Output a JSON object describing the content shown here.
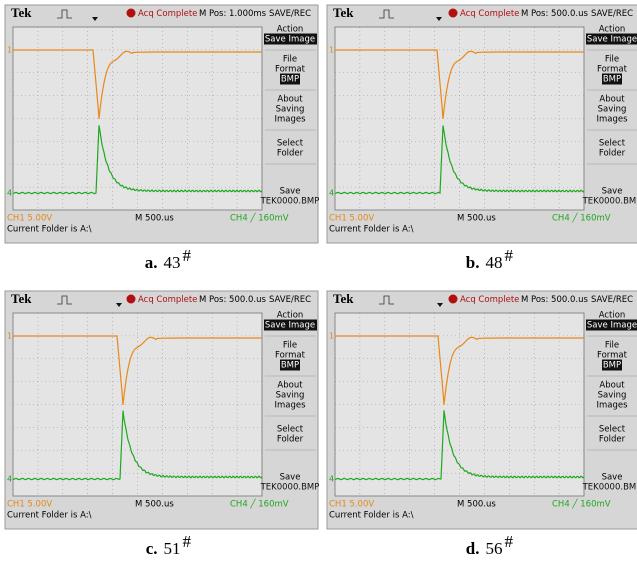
{
  "panels": [
    {
      "screen": {
        "brand": "Tek",
        "status": "Acq Complete",
        "mpos": "M Pos: 1.000ms",
        "mode": "SAVE/REC",
        "ch1_marker": "1",
        "ch4_marker": "4",
        "menu": [
          {
            "label": [
              "Action"
            ],
            "value": "Save Image"
          },
          {
            "label": [
              "File",
              "Format"
            ],
            "value": "BMP"
          },
          {
            "label": [
              "About",
              "Saving",
              "Images"
            ]
          },
          {
            "label": [
              "Select",
              "Folder"
            ]
          },
          {
            "label": [
              "Save"
            ],
            "value": "TEK0000.BMP"
          }
        ],
        "ch1": "CH1  5.00V",
        "timebase": "M 500.us",
        "ch4": "CH4 ╱ 160mV",
        "folder": "Current Folder is A:\\"
      },
      "caption": {
        "letter": "a.",
        "number": "43",
        "mark": "#"
      }
    },
    {
      "screen": {
        "brand": "Tek",
        "status": "Acq Complete",
        "mpos": "M Pos: 500.0.us",
        "mode": "SAVE/REC",
        "ch1_marker": "1",
        "ch4_marker": "4",
        "menu": [
          {
            "label": [
              "Action"
            ],
            "value": "Save Image"
          },
          {
            "label": [
              "File",
              "Format"
            ],
            "value": "BMP"
          },
          {
            "label": [
              "About",
              "Saving",
              "Images"
            ]
          },
          {
            "label": [
              "Select",
              "Folder"
            ]
          },
          {
            "label": [
              "Save"
            ],
            "value": "TEK0000.BMP"
          }
        ],
        "ch1": "CH1  5.00V",
        "timebase": "M 500.us",
        "ch4": "CH4 ╱ 160mV",
        "folder": "Current Folder is A:\\"
      },
      "caption": {
        "letter": "b.",
        "number": "48",
        "mark": "#"
      }
    },
    {
      "screen": {
        "brand": "Tek",
        "status": "Acq Complete",
        "mpos": "M Pos: 500.0.us",
        "mode": "SAVE/REC",
        "ch1_marker": "1",
        "ch4_marker": "4",
        "menu": [
          {
            "label": [
              "Action"
            ],
            "value": "Save Image"
          },
          {
            "label": [
              "File",
              "Format"
            ],
            "value": "BMP"
          },
          {
            "label": [
              "About",
              "Saving",
              "Images"
            ]
          },
          {
            "label": [
              "Select",
              "Folder"
            ]
          },
          {
            "label": [
              "Save"
            ],
            "value": "TEK0000.BMP"
          }
        ],
        "ch1": "CH1  5.00V",
        "timebase": "M 500.us",
        "ch4": "CH4 ╱ 160mV",
        "folder": "Current Folder is A:\\"
      },
      "caption": {
        "letter": "c.",
        "number": "51",
        "mark": "#"
      }
    },
    {
      "screen": {
        "brand": "Tek",
        "status": "Acq Complete",
        "mpos": "M Pos: 500.0.us",
        "mode": "SAVE/REC",
        "ch1_marker": "1",
        "ch4_marker": "4",
        "menu": [
          {
            "label": [
              "Action"
            ],
            "value": "Save Image"
          },
          {
            "label": [
              "File",
              "Format"
            ],
            "value": "BMP"
          },
          {
            "label": [
              "About",
              "Saving",
              "Images"
            ]
          },
          {
            "label": [
              "Select",
              "Folder"
            ]
          },
          {
            "label": [
              "Save"
            ],
            "value": "TEK0000.BMP"
          }
        ],
        "ch1": "CH1  5.00V",
        "timebase": "M 500.us",
        "ch4": "CH4 ╱ 160mV",
        "folder": "Current Folder is A:\\"
      },
      "caption": {
        "letter": "d.",
        "number": "56",
        "mark": "#"
      }
    }
  ]
}
